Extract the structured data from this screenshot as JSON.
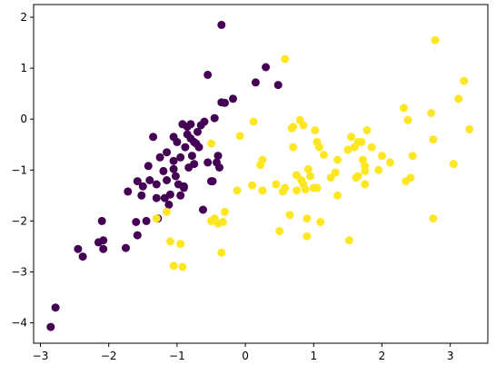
{
  "chart_data": {
    "type": "scatter",
    "title": "",
    "xlabel": "",
    "ylabel": "",
    "xlim": [
      -3.1,
      3.55
    ],
    "ylim": [
      -4.4,
      2.25
    ],
    "x_ticks": [
      -3,
      -2,
      -1,
      0,
      1,
      2,
      3
    ],
    "y_ticks": [
      -4,
      -3,
      -2,
      -1,
      0,
      1,
      2
    ],
    "x_tick_labels": [
      "−3",
      "−2",
      "−1",
      "0",
      "1",
      "2",
      "3"
    ],
    "y_tick_labels": [
      "−4",
      "−3",
      "−2",
      "−1",
      "0",
      "1",
      "2"
    ],
    "grid": false,
    "series": [
      {
        "color": "#440154",
        "points": [
          [
            -2.85,
            -4.08
          ],
          [
            -2.78,
            -3.7
          ],
          [
            -2.45,
            -2.55
          ],
          [
            -2.38,
            -2.7
          ],
          [
            -2.15,
            -2.42
          ],
          [
            -2.1,
            -2.0
          ],
          [
            -2.08,
            -2.38
          ],
          [
            -2.08,
            -2.55
          ],
          [
            -1.75,
            -2.53
          ],
          [
            -1.72,
            -1.42
          ],
          [
            -1.6,
            -2.02
          ],
          [
            -1.58,
            -2.28
          ],
          [
            -1.58,
            -1.22
          ],
          [
            -1.52,
            -1.5
          ],
          [
            -1.5,
            -1.32
          ],
          [
            -1.45,
            -2.0
          ],
          [
            -1.42,
            -0.92
          ],
          [
            -1.4,
            -1.2
          ],
          [
            -1.35,
            -0.35
          ],
          [
            -1.3,
            -1.28
          ],
          [
            -1.3,
            -1.55
          ],
          [
            -1.28,
            -1.95
          ],
          [
            -1.25,
            -0.75
          ],
          [
            -1.2,
            -1.02
          ],
          [
            -1.18,
            -1.55
          ],
          [
            -1.15,
            -1.2
          ],
          [
            -1.15,
            -0.65
          ],
          [
            -1.12,
            -1.68
          ],
          [
            -1.1,
            -1.48
          ],
          [
            -1.05,
            -0.98
          ],
          [
            -1.05,
            -0.35
          ],
          [
            -1.05,
            -0.82
          ],
          [
            -1.02,
            -1.12
          ],
          [
            -1.0,
            -0.45
          ],
          [
            -0.98,
            -1.28
          ],
          [
            -0.95,
            -0.75
          ],
          [
            -0.95,
            -1.5
          ],
          [
            -0.92,
            -0.1
          ],
          [
            -0.9,
            -1.35
          ],
          [
            -0.9,
            -1.32
          ],
          [
            -0.88,
            -0.55
          ],
          [
            -0.85,
            -0.3
          ],
          [
            -0.85,
            -0.15
          ],
          [
            -0.83,
            -0.95
          ],
          [
            -0.8,
            -0.1
          ],
          [
            -0.8,
            -0.38
          ],
          [
            -0.78,
            -0.72
          ],
          [
            -0.75,
            -0.88
          ],
          [
            -0.75,
            -0.45
          ],
          [
            -0.72,
            -0.48
          ],
          [
            -0.7,
            -0.25
          ],
          [
            -0.68,
            -0.55
          ],
          [
            -0.65,
            -0.12
          ],
          [
            -0.62,
            -1.78
          ],
          [
            -0.6,
            -0.05
          ],
          [
            -0.55,
            0.87
          ],
          [
            -0.55,
            -0.85
          ],
          [
            -0.5,
            -1.22
          ],
          [
            -0.48,
            -1.22
          ],
          [
            -0.45,
            0.02
          ],
          [
            -0.42,
            -0.85
          ],
          [
            -0.4,
            -0.72
          ],
          [
            -0.38,
            -0.95
          ],
          [
            -0.35,
            1.85
          ],
          [
            -0.35,
            0.33
          ],
          [
            -0.3,
            0.32
          ],
          [
            -0.18,
            0.4
          ],
          [
            0.15,
            0.72
          ],
          [
            0.3,
            1.02
          ],
          [
            0.48,
            0.67
          ]
        ]
      },
      {
        "color": "#fde725",
        "points": [
          [
            -1.3,
            -1.95
          ],
          [
            -1.15,
            -1.82
          ],
          [
            -1.1,
            -2.4
          ],
          [
            -1.05,
            -2.88
          ],
          [
            -0.95,
            -2.45
          ],
          [
            -0.92,
            -2.9
          ],
          [
            -0.5,
            -0.48
          ],
          [
            -0.5,
            -2.0
          ],
          [
            -0.45,
            -1.95
          ],
          [
            -0.4,
            -2.05
          ],
          [
            -0.35,
            -2.62
          ],
          [
            -0.33,
            -2.02
          ],
          [
            -0.3,
            -1.82
          ],
          [
            -0.12,
            -1.4
          ],
          [
            -0.08,
            -0.33
          ],
          [
            0.1,
            -1.3
          ],
          [
            0.12,
            -0.05
          ],
          [
            0.22,
            -0.9
          ],
          [
            0.25,
            -0.8
          ],
          [
            0.25,
            -1.4
          ],
          [
            0.45,
            -1.28
          ],
          [
            0.5,
            -2.2
          ],
          [
            0.55,
            -1.42
          ],
          [
            0.58,
            -1.35
          ],
          [
            0.58,
            1.18
          ],
          [
            0.65,
            -1.88
          ],
          [
            0.68,
            -0.18
          ],
          [
            0.7,
            -0.15
          ],
          [
            0.7,
            -0.55
          ],
          [
            0.75,
            -1.4
          ],
          [
            0.75,
            -1.1
          ],
          [
            0.8,
            -0.02
          ],
          [
            0.82,
            -1.2
          ],
          [
            0.85,
            -0.12
          ],
          [
            0.85,
            -1.28
          ],
          [
            0.88,
            -1.38
          ],
          [
            0.9,
            -2.3
          ],
          [
            0.9,
            -1.95
          ],
          [
            0.92,
            -0.98
          ],
          [
            0.95,
            -1.12
          ],
          [
            1.0,
            -1.35
          ],
          [
            1.02,
            -0.22
          ],
          [
            1.05,
            -0.45
          ],
          [
            1.05,
            -1.35
          ],
          [
            1.08,
            -0.55
          ],
          [
            1.1,
            -2.02
          ],
          [
            1.15,
            -0.7
          ],
          [
            1.25,
            -1.15
          ],
          [
            1.32,
            -1.05
          ],
          [
            1.35,
            -1.5
          ],
          [
            1.35,
            -0.8
          ],
          [
            1.5,
            -0.6
          ],
          [
            1.52,
            -2.38
          ],
          [
            1.55,
            -0.35
          ],
          [
            1.6,
            -0.55
          ],
          [
            1.62,
            -1.15
          ],
          [
            1.65,
            -1.12
          ],
          [
            1.65,
            -0.45
          ],
          [
            1.7,
            -0.45
          ],
          [
            1.72,
            -0.8
          ],
          [
            1.75,
            -0.92
          ],
          [
            1.75,
            -1.02
          ],
          [
            1.75,
            -1.28
          ],
          [
            1.78,
            -0.22
          ],
          [
            1.85,
            -0.55
          ],
          [
            1.95,
            -1.0
          ],
          [
            2.0,
            -0.72
          ],
          [
            2.12,
            -0.85
          ],
          [
            2.32,
            0.22
          ],
          [
            2.35,
            -1.22
          ],
          [
            2.38,
            -0.02
          ],
          [
            2.42,
            -1.15
          ],
          [
            2.45,
            -0.72
          ],
          [
            2.72,
            0.12
          ],
          [
            2.75,
            -0.4
          ],
          [
            2.75,
            -1.95
          ],
          [
            2.78,
            1.55
          ],
          [
            3.05,
            -0.88
          ],
          [
            3.12,
            0.4
          ],
          [
            3.2,
            0.75
          ],
          [
            3.28,
            -0.2
          ]
        ]
      }
    ]
  }
}
